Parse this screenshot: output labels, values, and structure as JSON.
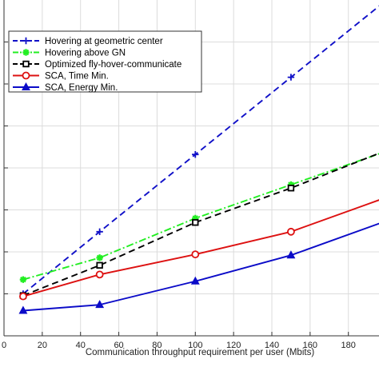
{
  "chart_data": {
    "type": "line",
    "title": "",
    "xlabel": "Communication throughput requirement per user (Mbits)",
    "ylabel": "",
    "xlim": [
      0,
      196
    ],
    "ylim": [
      0,
      400
    ],
    "grid": true,
    "legend_placement": "top-left",
    "x_ticks": [
      "0",
      "20",
      "40",
      "60",
      "80",
      "100",
      "120",
      "140",
      "160",
      "180"
    ],
    "series": [
      {
        "name": "Hovering at geometric center",
        "color": "#1010c8",
        "line_style": "dashed",
        "marker": "plus",
        "x": [
          10,
          50,
          100,
          150,
          200
        ],
        "y": [
          50,
          124,
          216,
          308,
          400
        ]
      },
      {
        "name": "Hovering above GN",
        "color": "#22ee22",
        "line_style": "dashdot",
        "marker": "star",
        "x": [
          10,
          50,
          100,
          150,
          200
        ],
        "y": [
          67,
          93,
          140,
          180,
          220
        ]
      },
      {
        "name": "Optimized fly-hover-communicate",
        "color": "#000000",
        "line_style": "dashed",
        "marker": "square",
        "x": [
          10,
          50,
          100,
          150,
          200
        ],
        "y": [
          48,
          84,
          135,
          176,
          221
        ]
      },
      {
        "name": "SCA, Time Min.",
        "color": "#dd1111",
        "line_style": "solid",
        "marker": "circle",
        "x": [
          10,
          50,
          100,
          150,
          200
        ],
        "y": [
          47,
          73,
          97,
          124,
          165
        ]
      },
      {
        "name": "SCA, Energy Min.",
        "color": "#0b0bc8",
        "line_style": "solid",
        "marker": "triangle",
        "x": [
          10,
          50,
          100,
          150,
          200
        ],
        "y": [
          30,
          37,
          65,
          96,
          137
        ]
      }
    ]
  }
}
